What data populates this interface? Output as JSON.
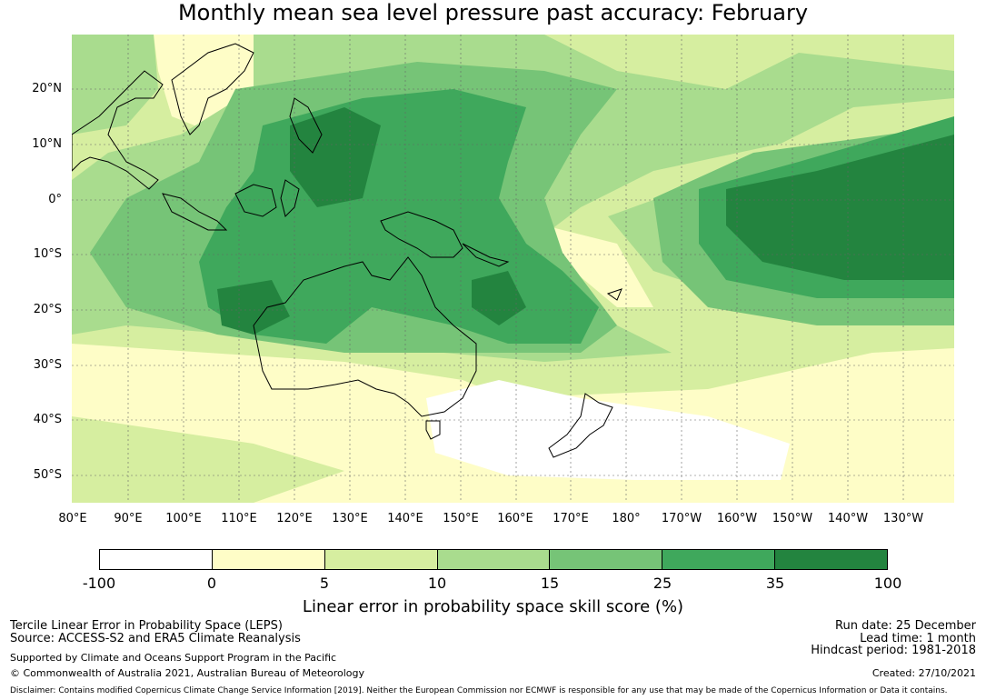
{
  "title": "Monthly mean sea level pressure past accuracy: February",
  "map": {
    "lat_labels": [
      "20°N",
      "10°N",
      "0°",
      "10°S",
      "20°S",
      "30°S",
      "40°S",
      "50°S"
    ],
    "lon_labels": [
      "80°E",
      "90°E",
      "100°E",
      "110°E",
      "120°E",
      "130°E",
      "140°E",
      "150°E",
      "160°E",
      "170°E",
      "180°",
      "170°W",
      "160°W",
      "150°W",
      "140°W",
      "130°W"
    ]
  },
  "colorbar": {
    "ticks": [
      "-100",
      "0",
      "5",
      "10",
      "15",
      "25",
      "35",
      "100"
    ],
    "colors": [
      "#ffffff",
      "#fefdc7",
      "#d6eea0",
      "#a9dc8e",
      "#76c477",
      "#3fa85c",
      "#23843f"
    ],
    "label": "Linear error in probability space skill score (%)"
  },
  "footer": {
    "left_line1": "Tercile Linear Error in Probability Space (LEPS)",
    "left_line2": "Source: ACCESS-S2 and ERA5 Climate Reanalysis",
    "left_line3": "Supported by Climate and Oceans Support Program in the Pacific",
    "left_line4": "© Commonwealth of Australia 2021, Australian Bureau of Meteorology",
    "right_line1": "Run date: 25 December",
    "right_line2": "Lead time: 1 month",
    "right_line3": "Hindcast period: 1981-2018",
    "right_line4": "Created: 27/10/2021",
    "disclaimer": "Disclaimer: Contains modified Copernicus Climate Change Service Information [2019]. Neither the European Commission nor ECMWF is responsible for any use that may be made of the Copernicus Information or Data it contains."
  }
}
